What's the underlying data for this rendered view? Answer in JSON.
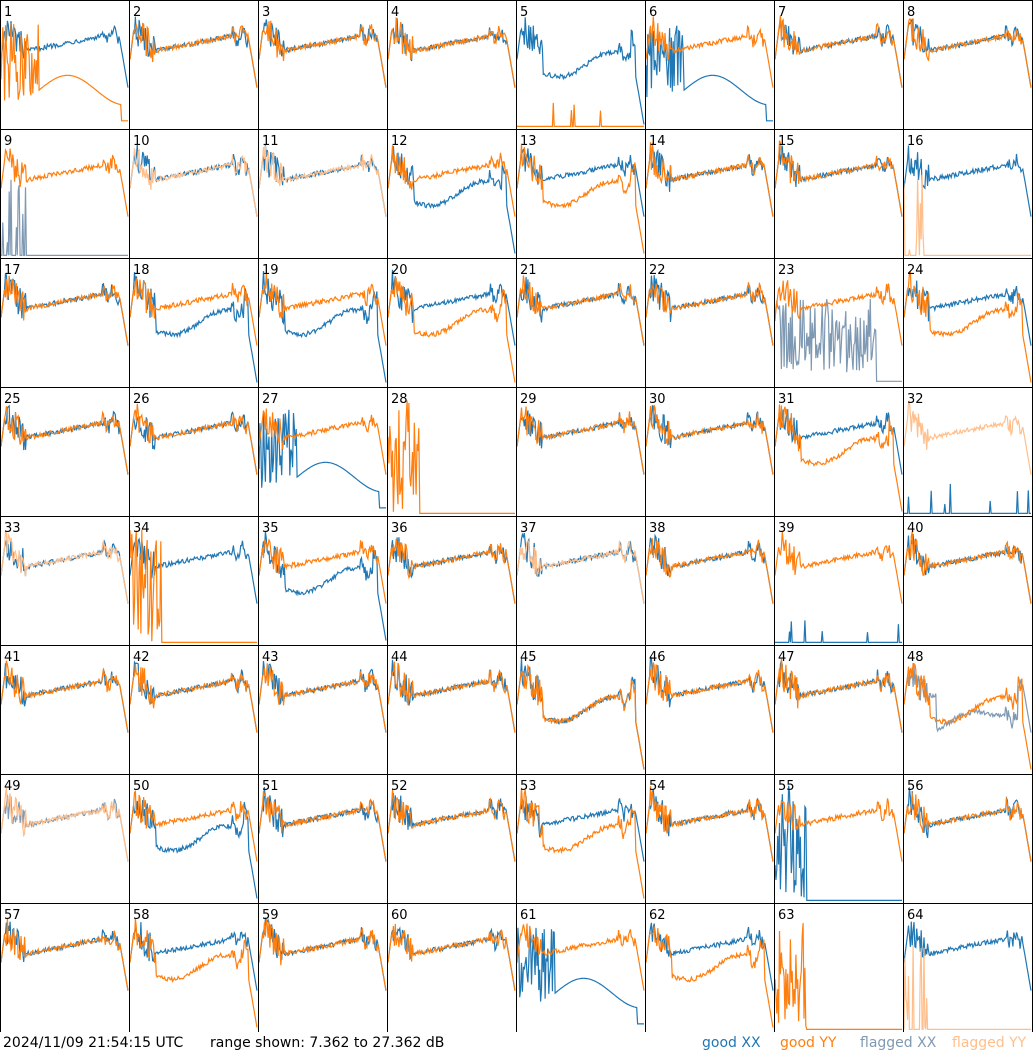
{
  "footer": {
    "timestamp": "2024/11/09 21:54:15 UTC",
    "range": "range shown: 7.362 to 27.362 dB"
  },
  "legend": [
    {
      "key": "good_xx",
      "label": "good XX",
      "color": "#1f77b4"
    },
    {
      "key": "good_yy",
      "label": "good YY",
      "color": "#ff7f0e"
    },
    {
      "key": "flagged_xx",
      "label": "flagged XX",
      "color": "#7f99b3"
    },
    {
      "key": "flagged_yy",
      "label": "flagged YY",
      "color": "#ffbf8c"
    }
  ],
  "chart_data": {
    "type": "line",
    "layout": "small-multiples 8x8",
    "x_ticks": "none",
    "y_range_db": [
      7.362,
      27.362
    ],
    "panels": [
      {
        "id": 1,
        "xx": "normal",
        "yy": "bad"
      },
      {
        "id": 2,
        "xx": "normal",
        "yy": "normal"
      },
      {
        "id": 3,
        "xx": "normal",
        "yy": "normal"
      },
      {
        "id": 4,
        "xx": "normal",
        "yy": "normal"
      },
      {
        "id": 5,
        "xx": "dip",
        "yy": "low"
      },
      {
        "id": 6,
        "xx": "bad",
        "yy": "normal"
      },
      {
        "id": 7,
        "xx": "normal",
        "yy": "normal"
      },
      {
        "id": 8,
        "xx": "normal",
        "yy": "normal"
      },
      {
        "id": 9,
        "xx": "flagged-low",
        "yy": "normal"
      },
      {
        "id": 10,
        "xx": "normal",
        "yy": "flagged"
      },
      {
        "id": 11,
        "xx": "normal",
        "yy": "flagged"
      },
      {
        "id": 12,
        "xx": "dip",
        "yy": "normal"
      },
      {
        "id": 13,
        "xx": "normal",
        "yy": "dip"
      },
      {
        "id": 14,
        "xx": "normal",
        "yy": "normal"
      },
      {
        "id": 15,
        "xx": "normal",
        "yy": "normal"
      },
      {
        "id": 16,
        "xx": "normal",
        "yy": "flagged-low"
      },
      {
        "id": 17,
        "xx": "normal",
        "yy": "normal"
      },
      {
        "id": 18,
        "xx": "dip",
        "yy": "normal"
      },
      {
        "id": 19,
        "xx": "dip",
        "yy": "normal"
      },
      {
        "id": 20,
        "xx": "normal",
        "yy": "dip"
      },
      {
        "id": 21,
        "xx": "normal",
        "yy": "normal"
      },
      {
        "id": 22,
        "xx": "normal",
        "yy": "normal"
      },
      {
        "id": 23,
        "xx": "flagged-noisy",
        "yy": "normal"
      },
      {
        "id": 24,
        "xx": "normal",
        "yy": "dip"
      },
      {
        "id": 25,
        "xx": "normal",
        "yy": "normal"
      },
      {
        "id": 26,
        "xx": "normal",
        "yy": "normal"
      },
      {
        "id": 27,
        "xx": "bad",
        "yy": "normal"
      },
      {
        "id": 28,
        "xx": "none",
        "yy": "spiky-low"
      },
      {
        "id": 29,
        "xx": "normal",
        "yy": "normal"
      },
      {
        "id": 30,
        "xx": "normal",
        "yy": "normal"
      },
      {
        "id": 31,
        "xx": "normal",
        "yy": "dip"
      },
      {
        "id": 32,
        "xx": "low",
        "yy": "flagged"
      },
      {
        "id": 33,
        "xx": "normal",
        "yy": "flagged"
      },
      {
        "id": 34,
        "xx": "normal",
        "yy": "spiky-low"
      },
      {
        "id": 35,
        "xx": "dip",
        "yy": "normal"
      },
      {
        "id": 36,
        "xx": "normal",
        "yy": "normal"
      },
      {
        "id": 37,
        "xx": "normal",
        "yy": "flagged"
      },
      {
        "id": 38,
        "xx": "normal",
        "yy": "normal"
      },
      {
        "id": 39,
        "xx": "low",
        "yy": "normal"
      },
      {
        "id": 40,
        "xx": "normal",
        "yy": "normal"
      },
      {
        "id": 41,
        "xx": "normal",
        "yy": "normal"
      },
      {
        "id": 42,
        "xx": "normal",
        "yy": "normal"
      },
      {
        "id": 43,
        "xx": "normal",
        "yy": "normal"
      },
      {
        "id": 44,
        "xx": "normal",
        "yy": "normal"
      },
      {
        "id": 45,
        "xx": "dip",
        "yy": "dip"
      },
      {
        "id": 46,
        "xx": "normal",
        "yy": "normal"
      },
      {
        "id": 47,
        "xx": "normal",
        "yy": "normal"
      },
      {
        "id": 48,
        "xx": "flagged-dip",
        "yy": "dip"
      },
      {
        "id": 49,
        "xx": "flagged",
        "yy": "flagged"
      },
      {
        "id": 50,
        "xx": "dip",
        "yy": "normal"
      },
      {
        "id": 51,
        "xx": "normal",
        "yy": "normal"
      },
      {
        "id": 52,
        "xx": "normal",
        "yy": "normal"
      },
      {
        "id": 53,
        "xx": "normal",
        "yy": "dip"
      },
      {
        "id": 54,
        "xx": "normal",
        "yy": "normal"
      },
      {
        "id": 55,
        "xx": "spiky-low",
        "yy": "normal"
      },
      {
        "id": 56,
        "xx": "normal",
        "yy": "normal"
      },
      {
        "id": 57,
        "xx": "normal",
        "yy": "normal"
      },
      {
        "id": 58,
        "xx": "normal",
        "yy": "dip"
      },
      {
        "id": 59,
        "xx": "normal",
        "yy": "normal"
      },
      {
        "id": 60,
        "xx": "normal",
        "yy": "normal"
      },
      {
        "id": 61,
        "xx": "bad",
        "yy": "normal"
      },
      {
        "id": 62,
        "xx": "normal",
        "yy": "dip"
      },
      {
        "id": 63,
        "xx": "none",
        "yy": "spiky-low"
      },
      {
        "id": 64,
        "xx": "normal",
        "yy": "flagged-low"
      }
    ]
  }
}
